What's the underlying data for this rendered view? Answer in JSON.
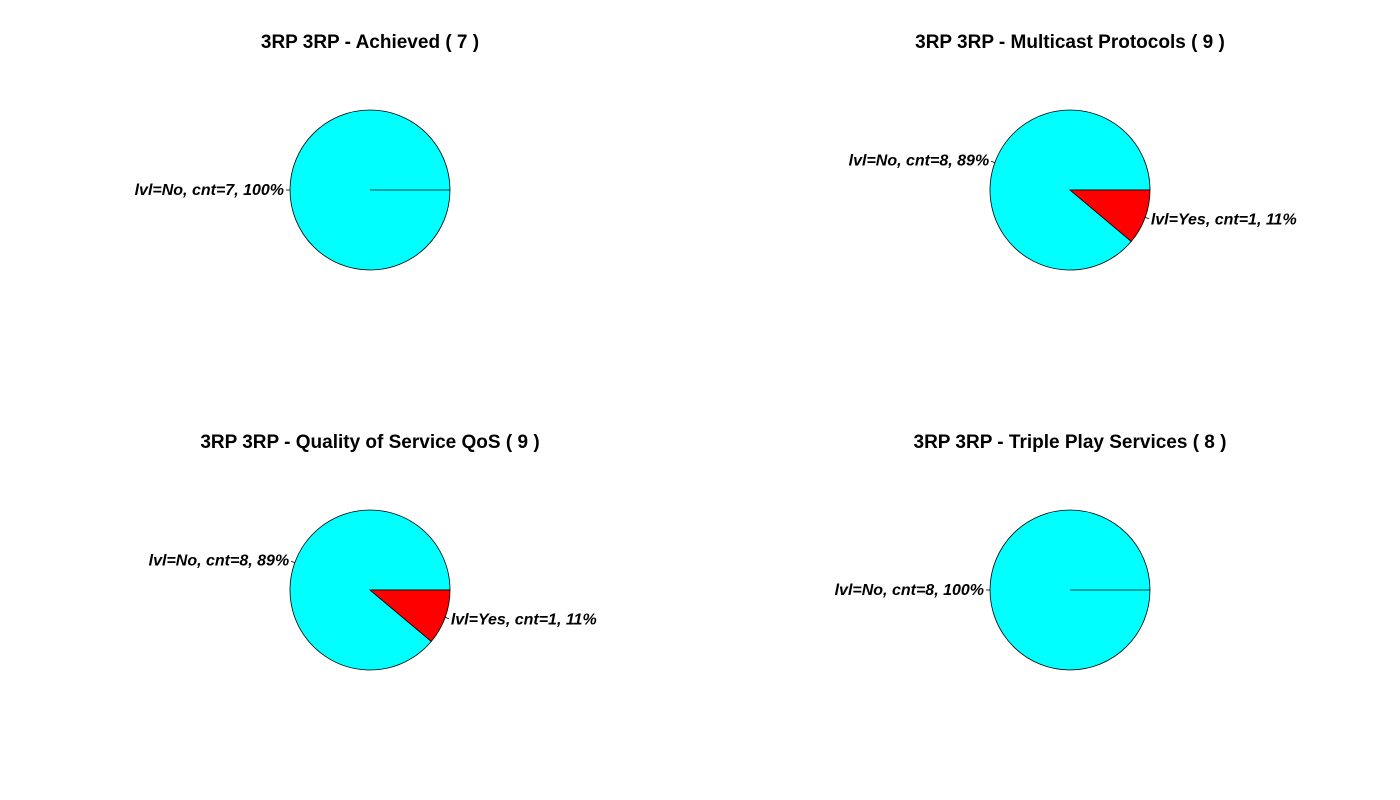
{
  "colors": {
    "No": "#00ffff",
    "Yes": "#ff0000",
    "outline": "#000000",
    "background": "#ffffff"
  },
  "chart_data": [
    {
      "type": "pie",
      "title": "3RP 3RP - Achieved ( 7 )",
      "slices": [
        {
          "level": "No",
          "count": 7,
          "percent": 100,
          "label": "lvl=No, cnt=7, 100%"
        }
      ]
    },
    {
      "type": "pie",
      "title": "3RP 3RP - Multicast Protocols ( 9 )",
      "slices": [
        {
          "level": "No",
          "count": 8,
          "percent": 89,
          "label": "lvl=No, cnt=8, 89%"
        },
        {
          "level": "Yes",
          "count": 1,
          "percent": 11,
          "label": "lvl=Yes, cnt=1, 11%"
        }
      ]
    },
    {
      "type": "pie",
      "title": "3RP 3RP - Quality of Service QoS ( 9 )",
      "slices": [
        {
          "level": "No",
          "count": 8,
          "percent": 89,
          "label": "lvl=No, cnt=8, 89%"
        },
        {
          "level": "Yes",
          "count": 1,
          "percent": 11,
          "label": "lvl=Yes, cnt=1, 11%"
        }
      ]
    },
    {
      "type": "pie",
      "title": "3RP 3RP - Triple Play Services ( 8 )",
      "slices": [
        {
          "level": "No",
          "count": 8,
          "percent": 100,
          "label": "lvl=No, cnt=8, 100%"
        }
      ]
    }
  ]
}
